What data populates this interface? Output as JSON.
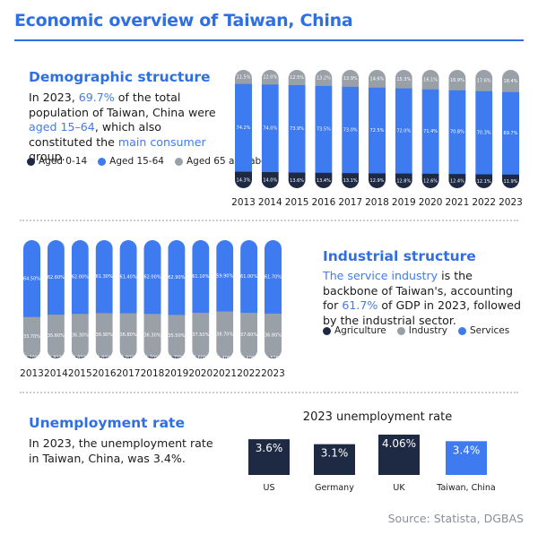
{
  "header": {
    "title": "Economic overview of Taiwan, China"
  },
  "demographic": {
    "heading": "Demographic structure",
    "text": [
      {
        "t": "In 2023, ",
        "hl": false
      },
      {
        "t": "69.7%",
        "hl": true
      },
      {
        "t": " of the total population of Taiwan, China were ",
        "hl": false
      },
      {
        "t": "aged 15–64",
        "hl": true
      },
      {
        "t": ", which also constituted the ",
        "hl": false
      },
      {
        "t": "main consumer",
        "hl": true
      },
      {
        "t": " group.",
        "hl": false
      }
    ],
    "legend": [
      {
        "label": "Aged 0-14",
        "color": "#1e2a44"
      },
      {
        "label": "Aged 15-64",
        "color": "#3f7bf0"
      },
      {
        "label": "Aged 65 and above",
        "color": "#9aa0a8"
      }
    ]
  },
  "industrial": {
    "heading": "Industrial structure",
    "text": [
      {
        "t": "The service industry",
        "hl": true
      },
      {
        "t": " is the backbone of Taiwan's, accounting for ",
        "hl": false
      },
      {
        "t": "61.7%",
        "hl": true
      },
      {
        "t": " of GDP in 2023, followed by the industrial sector.",
        "hl": false
      }
    ],
    "legend": [
      {
        "label": "Agriculture",
        "color": "#1e2a44"
      },
      {
        "label": "Industry",
        "color": "#9aa0a8"
      },
      {
        "label": "Services",
        "color": "#3f7bf0"
      }
    ]
  },
  "unemployment": {
    "heading": "Unemployment rate",
    "text": [
      {
        "t": "In 2023, the unemployment rate in Taiwan, China, was 3.4%.",
        "hl": false
      }
    ]
  },
  "source": "Source: Statista, DGBAS",
  "colors": {
    "accent": "#2f6fe4",
    "dark": "#1e2a44",
    "grey": "#9aa0a8",
    "blue": "#3f7bf0"
  },
  "chart_data": [
    {
      "type": "bar",
      "stacked": true,
      "categories": [
        "2013",
        "2014",
        "2015",
        "2016",
        "2017",
        "2018",
        "2019",
        "2020",
        "2021",
        "2022",
        "2023"
      ],
      "series": [
        {
          "name": "Aged 0-14",
          "values": [
            14.3,
            14.0,
            13.6,
            13.4,
            13.1,
            12.9,
            12.8,
            12.6,
            12.4,
            12.1,
            11.9
          ],
          "labels": [
            "14.3%",
            "14.0%",
            "13.6%",
            "13.4%",
            "13.1%",
            "12.9%",
            "12.8%",
            "12.6%",
            "12.4%",
            "12.1%",
            "11.9%"
          ]
        },
        {
          "name": "Aged 15-64",
          "values": [
            74.2,
            74.0,
            73.9,
            73.5,
            73.0,
            72.5,
            72.0,
            71.4,
            70.8,
            70.3,
            69.7
          ],
          "labels": [
            "74.2%",
            "74.0%",
            "73.9%",
            "73.5%",
            "73.0%",
            "72.5%",
            "72.0%",
            "71.4%",
            "70.8%",
            "70.3%",
            "69.7%"
          ]
        },
        {
          "name": "Aged 65 and above",
          "values": [
            11.5,
            12.0,
            12.5,
            13.2,
            13.9,
            14.6,
            15.3,
            16.1,
            16.9,
            17.6,
            18.4
          ],
          "labels": [
            "11.5%",
            "12.0%",
            "12.5%",
            "13.2%",
            "13.9%",
            "14.6%",
            "15.3%",
            "16.1%",
            "16.9%",
            "17.6%",
            "18.4%"
          ]
        }
      ],
      "ylim": [
        0,
        100
      ]
    },
    {
      "type": "bar",
      "stacked": true,
      "categories": [
        "2013",
        "2014",
        "2015",
        "2016",
        "2017",
        "2018",
        "2019",
        "2020",
        "2021",
        "2022",
        "2023"
      ],
      "series": [
        {
          "name": "Agriculture",
          "values": [
            1.7,
            1.8,
            1.8,
            1.8,
            1.8,
            1.7,
            1.7,
            1.6,
            1.4,
            1.4,
            1.5
          ],
          "labels": [
            "1.70%",
            "1.80%",
            "1.80%",
            "1.80%",
            "1.80%",
            "1.70%",
            "1.70%",
            "1.60%",
            "1.40%",
            "1.40%",
            "1.50%"
          ]
        },
        {
          "name": "Industry",
          "values": [
            33.7,
            35.6,
            36.3,
            36.9,
            36.8,
            36.3,
            35.5,
            37.5,
            38.7,
            37.6,
            36.8
          ],
          "labels": [
            "33.70%",
            "35.60%",
            "36.30%",
            "36.90%",
            "36.80%",
            "36.30%",
            "35.50%",
            "37.50%",
            "38.70%",
            "37.60%",
            "36.80%"
          ]
        },
        {
          "name": "Services",
          "values": [
            64.5,
            62.6,
            62.0,
            61.3,
            61.4,
            62.0,
            62.9,
            61.1,
            59.9,
            61.0,
            61.7
          ],
          "labels": [
            "64.50%",
            "62.60%",
            "62.00%",
            "61.30%",
            "61.40%",
            "62.00%",
            "62.90%",
            "61.10%",
            "59.90%",
            "61.00%",
            "61.70%"
          ]
        }
      ],
      "ylim": [
        0,
        100
      ]
    },
    {
      "type": "bar",
      "title": "2023 unemployment rate",
      "categories": [
        "US",
        "Germany",
        "UK",
        "Taiwan, China"
      ],
      "values": [
        3.6,
        3.1,
        4.06,
        3.4
      ],
      "labels": [
        "3.6%",
        "3.1%",
        "4.06%",
        "3.4%"
      ],
      "colors": [
        "#1e2a44",
        "#1e2a44",
        "#1e2a44",
        "#3f7bf0"
      ]
    }
  ]
}
